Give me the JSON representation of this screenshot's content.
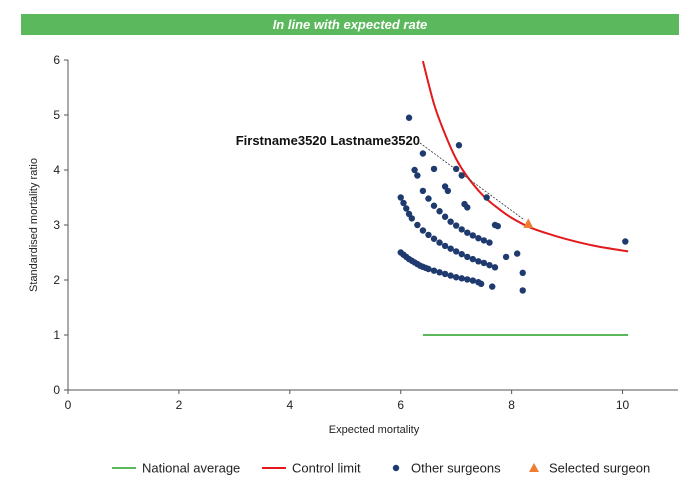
{
  "banner": {
    "text": "In line with expected rate",
    "color": "#5cb85c"
  },
  "chart_data": {
    "type": "scatter",
    "xlabel": "Expected mortality",
    "ylabel": "Standardised mortality ratio",
    "xlim": [
      0,
      11
    ],
    "ylim": [
      0,
      6
    ],
    "xticks": [
      0,
      2,
      4,
      6,
      8,
      10
    ],
    "yticks": [
      0,
      1,
      2,
      3,
      4,
      5,
      6
    ],
    "grid": false,
    "legend_position": "bottom",
    "series": [
      {
        "name": "National average",
        "kind": "line",
        "color": "#5cb85c",
        "points": [
          [
            6.4,
            1.0
          ],
          [
            10.1,
            1.0
          ]
        ]
      },
      {
        "name": "Control limit",
        "kind": "line",
        "color": "#e31a1c",
        "points": [
          [
            6.4,
            5.98
          ],
          [
            6.6,
            5.2
          ],
          [
            6.8,
            4.65
          ],
          [
            7.0,
            4.2
          ],
          [
            7.2,
            3.88
          ],
          [
            7.5,
            3.52
          ],
          [
            7.8,
            3.27
          ],
          [
            8.0,
            3.13
          ],
          [
            8.3,
            2.97
          ],
          [
            8.6,
            2.86
          ],
          [
            9.0,
            2.74
          ],
          [
            9.5,
            2.62
          ],
          [
            10.1,
            2.52
          ]
        ]
      },
      {
        "name": "Other surgeons",
        "kind": "scatter",
        "color": "#1f3a6e",
        "points": [
          [
            6.0,
            2.5
          ],
          [
            6.05,
            2.46
          ],
          [
            6.1,
            2.42
          ],
          [
            6.15,
            2.38
          ],
          [
            6.2,
            2.35
          ],
          [
            6.25,
            2.32
          ],
          [
            6.3,
            2.29
          ],
          [
            6.35,
            2.26
          ],
          [
            6.4,
            2.24
          ],
          [
            6.45,
            2.22
          ],
          [
            6.5,
            2.2
          ],
          [
            6.6,
            2.17
          ],
          [
            6.7,
            2.14
          ],
          [
            6.8,
            2.11
          ],
          [
            6.9,
            2.08
          ],
          [
            7.0,
            2.05
          ],
          [
            7.1,
            2.03
          ],
          [
            7.2,
            2.01
          ],
          [
            7.3,
            1.99
          ],
          [
            7.4,
            1.96
          ],
          [
            7.45,
            1.93
          ],
          [
            6.0,
            3.5
          ],
          [
            6.05,
            3.4
          ],
          [
            6.1,
            3.3
          ],
          [
            6.15,
            3.2
          ],
          [
            6.2,
            3.12
          ],
          [
            6.3,
            3.0
          ],
          [
            6.4,
            2.9
          ],
          [
            6.5,
            2.82
          ],
          [
            6.6,
            2.75
          ],
          [
            6.7,
            2.68
          ],
          [
            6.8,
            2.62
          ],
          [
            6.9,
            2.57
          ],
          [
            7.0,
            2.52
          ],
          [
            7.1,
            2.47
          ],
          [
            7.2,
            2.42
          ],
          [
            7.3,
            2.38
          ],
          [
            7.4,
            2.34
          ],
          [
            7.5,
            2.31
          ],
          [
            7.6,
            2.27
          ],
          [
            7.7,
            2.23
          ],
          [
            6.5,
            3.48
          ],
          [
            6.6,
            3.35
          ],
          [
            6.7,
            3.25
          ],
          [
            6.8,
            3.15
          ],
          [
            6.9,
            3.06
          ],
          [
            7.0,
            2.99
          ],
          [
            7.1,
            2.92
          ],
          [
            7.2,
            2.86
          ],
          [
            7.3,
            2.81
          ],
          [
            7.4,
            2.76
          ],
          [
            7.5,
            2.72
          ],
          [
            7.6,
            2.68
          ],
          [
            6.25,
            4.0
          ],
          [
            6.3,
            3.9
          ],
          [
            6.4,
            4.3
          ],
          [
            6.15,
            4.95
          ],
          [
            6.4,
            3.62
          ],
          [
            6.6,
            4.02
          ],
          [
            6.8,
            3.7
          ],
          [
            6.85,
            3.62
          ],
          [
            7.0,
            4.02
          ],
          [
            7.05,
            4.45
          ],
          [
            7.1,
            3.9
          ],
          [
            7.15,
            3.38
          ],
          [
            7.2,
            3.32
          ],
          [
            7.55,
            3.5
          ],
          [
            7.7,
            3.0
          ],
          [
            7.75,
            2.98
          ],
          [
            7.9,
            2.42
          ],
          [
            7.65,
            1.88
          ],
          [
            8.1,
            2.48
          ],
          [
            8.2,
            2.13
          ],
          [
            8.2,
            1.81
          ],
          [
            10.05,
            2.7
          ]
        ]
      },
      {
        "name": "Selected surgeon",
        "kind": "scatter",
        "marker": "triangle",
        "color": "#ed7d31",
        "points": [
          [
            8.3,
            3.02
          ]
        ]
      }
    ],
    "annotations": [
      {
        "text": "Firstname3520 Lastname3520",
        "points_to": [
          8.3,
          3.02
        ]
      }
    ]
  }
}
